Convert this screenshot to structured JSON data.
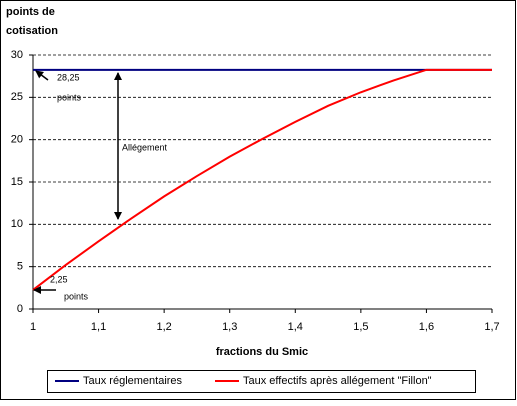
{
  "chart_data": {
    "type": "line",
    "y_label": [
      "points de",
      "cotisation"
    ],
    "x_label": "fractions du Smic",
    "x": [
      1,
      1.05,
      1.1,
      1.15,
      1.2,
      1.25,
      1.3,
      1.35,
      1.4,
      1.45,
      1.5,
      1.55,
      1.6,
      1.65,
      1.7
    ],
    "series": [
      {
        "name": "Taux réglementaires",
        "color": "#000080",
        "values": [
          28.25,
          28.25,
          28.25,
          28.25,
          28.25,
          28.25,
          28.25,
          28.25,
          28.25,
          28.25,
          28.25,
          28.25,
          28.25,
          28.25,
          28.25
        ]
      },
      {
        "name": "Taux effectifs après allégement \"Fillon\"",
        "color": "#ff0000",
        "values": [
          2.25,
          5.2,
          8.0,
          10.7,
          13.3,
          15.7,
          18.0,
          20.1,
          22.1,
          24.0,
          25.6,
          27.0,
          28.25,
          28.25,
          28.25
        ]
      }
    ],
    "xlim": [
      1,
      1.7
    ],
    "xticks": [
      1,
      {
        "value": 1.1,
        "label": "1,1"
      },
      {
        "value": 1.2,
        "label": "1,2"
      },
      {
        "value": 1.3,
        "label": "1,3"
      },
      {
        "value": 1.4,
        "label": "1,4"
      },
      {
        "value": 1.5,
        "label": "1,5"
      },
      {
        "value": 1.6,
        "label": "1,6"
      },
      {
        "value": 1.7,
        "label": "1,7"
      }
    ],
    "ylim": [
      0,
      30
    ],
    "yticks": [
      0,
      5,
      10,
      15,
      20,
      25,
      30
    ],
    "grid": true,
    "legend": "bottom",
    "annotations": [
      "28,25",
      "points",
      "2,25",
      "points",
      "Allégement"
    ]
  }
}
